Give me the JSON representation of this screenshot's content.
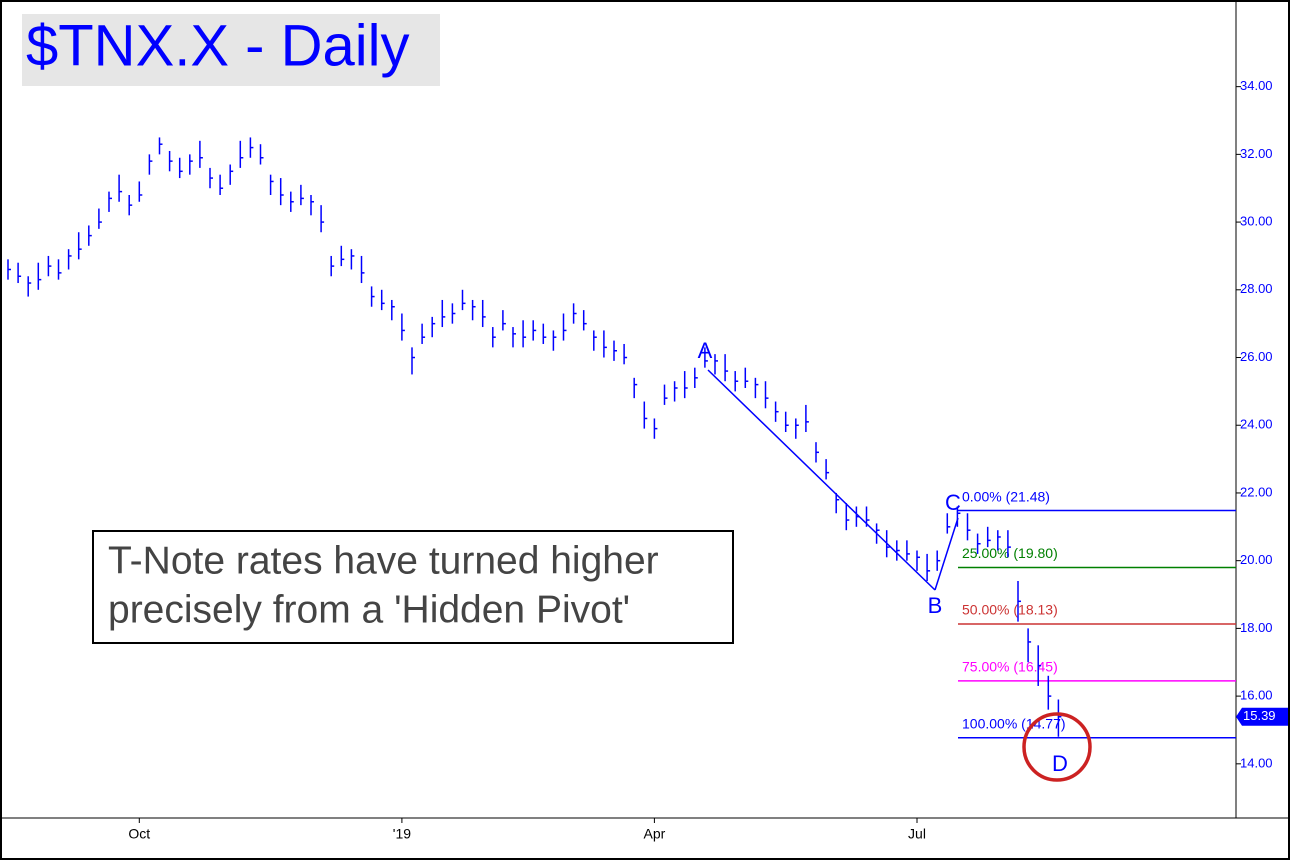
{
  "chart_data": {
    "type": "ohlc",
    "title": "$TNX.X - Daily",
    "annotation": [
      "T-Note rates have turned higher",
      "precisely from a 'Hidden Pivot'"
    ],
    "pivots": [
      "A",
      "B",
      "C",
      "D"
    ],
    "color": "#0000ff",
    "categories": [
      null,
      null,
      null,
      null,
      null,
      null,
      null,
      null,
      null,
      null,
      null,
      null,
      null,
      "Oct",
      null,
      null,
      null,
      null,
      null,
      null,
      null,
      null,
      null,
      null,
      null,
      null,
      null,
      null,
      null,
      null,
      null,
      null,
      null,
      null,
      null,
      null,
      null,
      null,
      null,
      "'19",
      null,
      null,
      null,
      null,
      null,
      null,
      null,
      null,
      null,
      null,
      null,
      null,
      null,
      null,
      null,
      null,
      null,
      null,
      null,
      null,
      null,
      null,
      null,
      null,
      "Apr",
      null,
      null,
      null,
      null,
      null,
      null,
      null,
      null,
      null,
      null,
      null,
      null,
      null,
      null,
      null,
      null,
      null,
      null,
      null,
      null,
      null,
      null,
      null,
      null,
      null,
      "Jul",
      null,
      null,
      null,
      null,
      null,
      null,
      null,
      null,
      null,
      null,
      null,
      null,
      null,
      null
    ],
    "high": [
      28.9,
      28.8,
      28.4,
      28.8,
      29.0,
      28.9,
      29.2,
      29.7,
      29.9,
      30.4,
      30.9,
      31.4,
      30.8,
      31.2,
      32.0,
      32.5,
      32.1,
      31.9,
      32.0,
      32.4,
      31.6,
      31.4,
      31.7,
      32.4,
      32.5,
      32.3,
      31.4,
      31.3,
      30.9,
      31.1,
      30.8,
      30.5,
      29.0,
      29.3,
      29.2,
      29.0,
      28.1,
      28.0,
      27.7,
      27.3,
      26.3,
      27.0,
      27.2,
      27.7,
      27.6,
      28.0,
      27.7,
      27.7,
      26.9,
      27.4,
      26.9,
      27.1,
      27.1,
      27.0,
      26.8,
      27.3,
      27.6,
      27.4,
      26.8,
      26.8,
      26.5,
      26.4,
      25.4,
      24.7,
      24.2,
      25.2,
      25.3,
      25.6,
      25.7,
      26.3,
      26.1,
      26.1,
      25.6,
      25.7,
      25.4,
      25.3,
      24.7,
      24.4,
      24.2,
      24.6,
      23.5,
      23.0,
      22.0,
      21.7,
      21.6,
      21.6,
      21.1,
      20.9,
      20.6,
      20.6,
      20.3,
      20.2,
      20.3,
      21.4,
      21.6,
      21.4,
      20.8,
      21.0,
      20.9,
      20.9,
      19.4,
      18.0,
      17.5,
      16.6,
      15.9
    ],
    "low": [
      28.3,
      28.2,
      27.8,
      28.0,
      28.4,
      28.3,
      28.6,
      28.9,
      29.3,
      29.8,
      30.3,
      30.6,
      30.2,
      30.6,
      31.4,
      32.0,
      31.5,
      31.3,
      31.4,
      31.6,
      31.0,
      30.8,
      31.1,
      31.6,
      31.9,
      31.7,
      30.8,
      30.5,
      30.3,
      30.5,
      30.2,
      29.7,
      28.4,
      28.7,
      28.6,
      28.2,
      27.5,
      27.4,
      27.1,
      26.5,
      25.5,
      26.4,
      26.6,
      26.9,
      27.0,
      27.4,
      27.1,
      26.9,
      26.3,
      26.8,
      26.3,
      26.3,
      26.5,
      26.4,
      26.2,
      26.5,
      27.0,
      26.8,
      26.2,
      26.0,
      25.9,
      25.8,
      24.8,
      23.9,
      23.6,
      24.6,
      24.7,
      24.8,
      25.1,
      25.7,
      25.5,
      25.3,
      25.0,
      25.1,
      24.8,
      24.5,
      24.1,
      23.8,
      23.6,
      23.8,
      22.9,
      22.4,
      21.4,
      20.9,
      21.0,
      21.0,
      20.5,
      20.1,
      20.0,
      20.0,
      19.7,
      19.4,
      19.7,
      20.8,
      21.0,
      20.6,
      20.2,
      20.4,
      20.3,
      20.1,
      18.2,
      17.0,
      16.3,
      15.6,
      14.8
    ],
    "close": [
      28.6,
      28.4,
      28.2,
      28.3,
      28.7,
      28.5,
      29.0,
      29.2,
      29.6,
      30.0,
      30.7,
      30.9,
      30.5,
      30.8,
      31.8,
      32.3,
      31.8,
      31.5,
      31.8,
      31.9,
      31.3,
      31.0,
      31.5,
      31.9,
      32.2,
      31.9,
      31.2,
      30.8,
      30.6,
      30.7,
      30.6,
      30.0,
      28.7,
      28.9,
      29.0,
      28.5,
      27.8,
      27.6,
      27.5,
      26.8,
      26.0,
      26.6,
      27.0,
      27.2,
      27.3,
      27.6,
      27.5,
      27.2,
      26.6,
      27.0,
      26.7,
      26.6,
      26.8,
      26.6,
      26.6,
      26.8,
      27.3,
      27.0,
      26.6,
      26.3,
      26.2,
      26.0,
      25.2,
      24.2,
      23.9,
      24.8,
      25.1,
      25.1,
      25.4,
      25.9,
      25.9,
      25.6,
      25.3,
      25.3,
      25.2,
      24.8,
      24.4,
      24.0,
      24.0,
      24.1,
      23.2,
      22.6,
      21.8,
      21.2,
      21.3,
      21.2,
      20.9,
      20.4,
      20.3,
      20.2,
      20.1,
      19.7,
      20.0,
      21.0,
      21.4,
      20.9,
      20.5,
      20.6,
      20.7,
      20.4,
      18.8,
      17.6,
      16.9,
      16.0,
      15.39
    ],
    "last_value": 15.39,
    "fib_levels": [
      {
        "label": "0.00% (21.48)",
        "value": 21.48,
        "color": "#0000ff"
      },
      {
        "label": "25.00% (19.80)",
        "value": 19.8,
        "color": "#008000"
      },
      {
        "label": "50.00% (18.13)",
        "value": 18.13,
        "color": "#cc3333"
      },
      {
        "label": "75.00% (16.45)",
        "value": 16.45,
        "color": "#ff00ff"
      },
      {
        "label": "100.00% (14.77)",
        "value": 14.77,
        "color": "#0000ff"
      }
    ],
    "ylim": [
      12.4,
      36.5
    ],
    "yticks": [
      {
        "value": 14,
        "label": "14.00"
      },
      {
        "value": 16,
        "label": "16.00"
      },
      {
        "value": 18,
        "label": "18.00"
      },
      {
        "value": 20,
        "label": "20.00"
      },
      {
        "value": 22,
        "label": "22.00"
      },
      {
        "value": 24,
        "label": "24.00"
      },
      {
        "value": 26,
        "label": "26.00"
      },
      {
        "value": 28,
        "label": "28.00"
      },
      {
        "value": 30,
        "label": "30.00"
      },
      {
        "value": 32,
        "label": "32.00"
      },
      {
        "value": 34,
        "label": "34.00"
      }
    ]
  }
}
